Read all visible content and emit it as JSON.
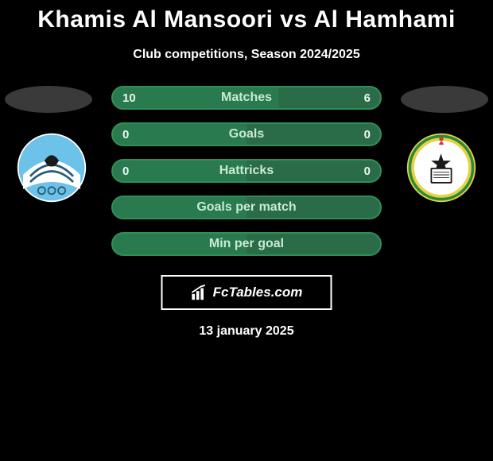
{
  "title": "Khamis Al Mansoori vs Al Hamhami",
  "subtitle": "Club competitions, Season 2024/2025",
  "date": "13 january 2025",
  "branding": "FcTables.com",
  "colors": {
    "background": "#000000",
    "text": "#ffffff",
    "bar_border": "#2f8f56",
    "bar_fill": "#2a6b48",
    "bar_fill_alt": "#2a7a50",
    "bar_label": "#c8ead3",
    "ellipse": "#3a3a3a",
    "crest_left_primary": "#6cc2e8",
    "crest_left_secondary": "#2a5a78",
    "crest_right_primary": "#e8d142",
    "crest_right_secondary": "#2a8a3d"
  },
  "bars": [
    {
      "label": "Matches",
      "left": "10",
      "right": "6",
      "left_fill_pct": 62
    },
    {
      "label": "Goals",
      "left": "0",
      "right": "0",
      "left_fill_pct": 50
    },
    {
      "label": "Hattricks",
      "left": "0",
      "right": "0",
      "left_fill_pct": 50
    },
    {
      "label": "Goals per match",
      "left": "",
      "right": "",
      "left_fill_pct": 50
    },
    {
      "label": "Min per goal",
      "left": "",
      "right": "",
      "left_fill_pct": 50
    }
  ],
  "crests": {
    "left": {
      "name": "club-crest-left"
    },
    "right": {
      "name": "club-crest-right"
    }
  }
}
